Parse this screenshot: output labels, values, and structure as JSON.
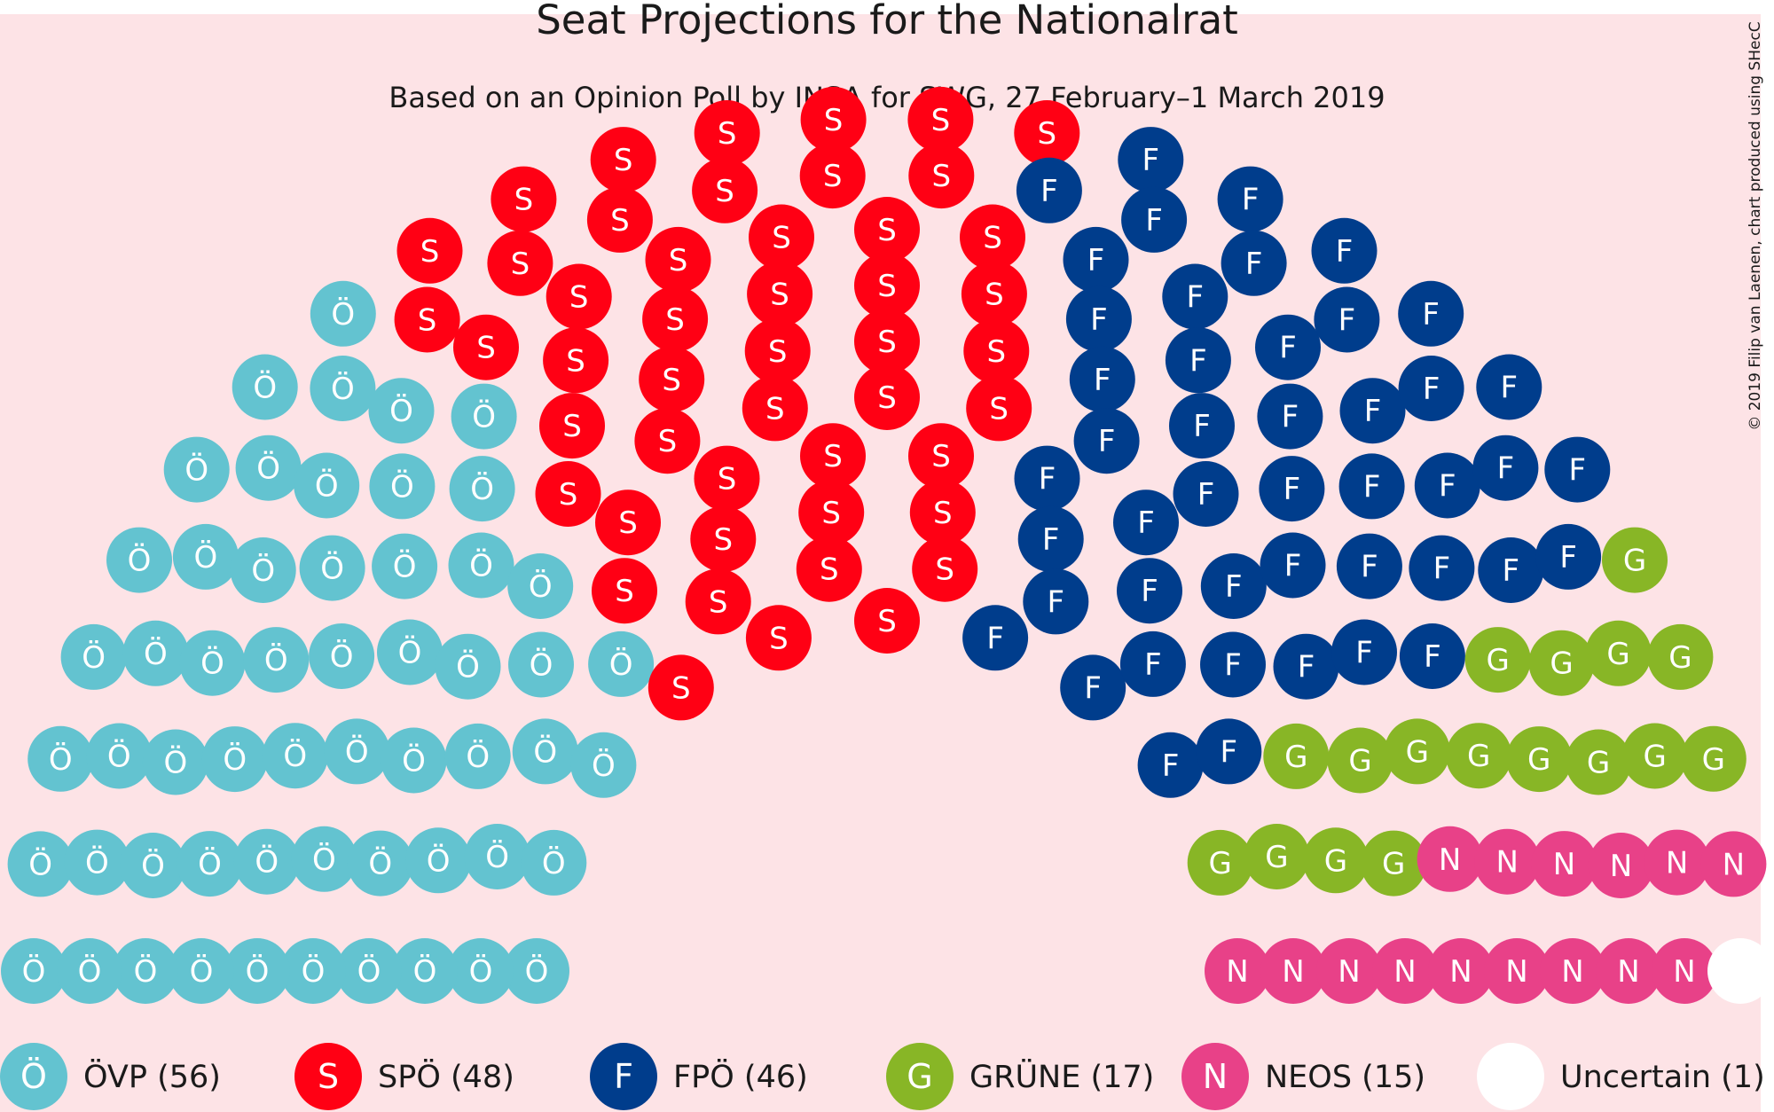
{
  "chart_data": {
    "type": "parliament",
    "title": "Seat Projections for the Nationalrat",
    "subtitle": "Based on an Opinion Poll by INSA for SWG, 27 February–1 March 2019",
    "copyright": "© 2019 Filip van Laenen, chart produced using SHecC",
    "total_seats": 183,
    "background_color": "#fde3e6",
    "parties": [
      {
        "name": "ÖVP",
        "letter": "Ö",
        "seats": 56,
        "color": "#63c3d0",
        "legend": "ÖVP (56)"
      },
      {
        "name": "SPÖ",
        "letter": "S",
        "seats": 48,
        "color": "#ff0014",
        "legend": "SPÖ (48)"
      },
      {
        "name": "FPÖ",
        "letter": "F",
        "seats": 46,
        "color": "#003d8c",
        "legend": "FPÖ (46)"
      },
      {
        "name": "GRÜNE",
        "letter": "G",
        "seats": 17,
        "color": "#88b626",
        "legend": "GRÜNE (17)"
      },
      {
        "name": "NEOS",
        "letter": "N",
        "seats": 15,
        "color": "#e84188",
        "legend": "NEOS (15)"
      },
      {
        "name": "Uncertain",
        "letter": "",
        "seats": 1,
        "color": "#ffffff",
        "legend": "Uncertain (1)"
      }
    ]
  }
}
